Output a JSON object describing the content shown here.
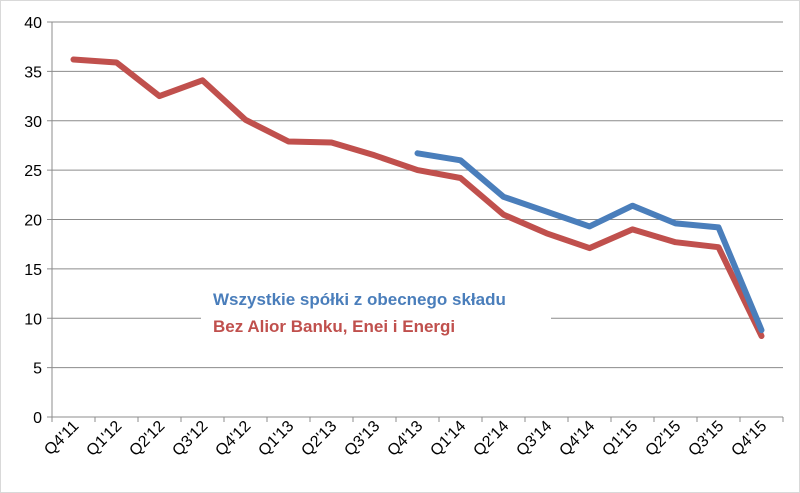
{
  "chart_data": {
    "type": "line",
    "title": "",
    "xlabel": "",
    "ylabel": "",
    "ylim": [
      0,
      40
    ],
    "yticks": [
      "0",
      "5",
      "10",
      "15",
      "20",
      "25",
      "30",
      "35",
      "40"
    ],
    "grid": true,
    "legend_placement": "center-bottom (inside plot)",
    "categories": [
      "Q4'11",
      "Q1'12",
      "Q2'12",
      "Q3'12",
      "Q4'12",
      "Q1'13",
      "Q2'13",
      "Q3'13",
      "Q4'13",
      "Q1'14",
      "Q2'14",
      "Q3'14",
      "Q4'14",
      "Q1'15",
      "Q2'15",
      "Q3'15",
      "Q4'15"
    ],
    "series": [
      {
        "name": "Wszystkie spółki z obecnego składu",
        "color": "#4a7ebb",
        "values": [
          null,
          null,
          null,
          null,
          null,
          null,
          null,
          null,
          26.7,
          26.0,
          22.3,
          20.8,
          19.3,
          21.4,
          19.6,
          19.2,
          8.8
        ]
      },
      {
        "name": "Bez Alior Banku, Enei i Energi",
        "color": "#c0504d",
        "values": [
          36.2,
          35.9,
          32.5,
          34.1,
          30.1,
          27.9,
          27.8,
          26.5,
          25.0,
          24.2,
          20.5,
          18.6,
          17.1,
          19.0,
          17.7,
          17.2,
          8.2
        ]
      }
    ]
  }
}
